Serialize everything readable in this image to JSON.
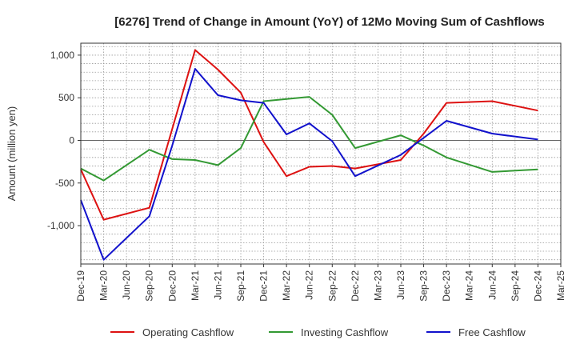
{
  "chart_data": {
    "type": "line",
    "title": "[6276]  Trend of Change in Amount (YoY) of 12Mo Moving Sum of Cashflows",
    "xlabel": "",
    "ylabel": "Amount (million yen)",
    "ylim": [
      -1450,
      1140
    ],
    "yticks": [
      1000,
      500,
      0,
      -500,
      -1000
    ],
    "ytick_labels": [
      "1,000",
      "500",
      "0",
      "-500",
      "-1,000"
    ],
    "grid": true,
    "legend_position": "bottom",
    "categories": [
      "Dec-19",
      "Mar-20",
      "Jun-20",
      "Sep-20",
      "Dec-20",
      "Mar-21",
      "Jun-21",
      "Sep-21",
      "Dec-21",
      "Mar-22",
      "Jun-22",
      "Sep-22",
      "Dec-22",
      "Mar-23",
      "Jun-23",
      "Sep-23",
      "Dec-23",
      "Mar-24",
      "Jun-24",
      "Sep-24",
      "Dec-24",
      "Mar-25"
    ],
    "series": [
      {
        "name": "Operating Cashflow",
        "color": "#dd1111",
        "values": [
          -340,
          -930,
          null,
          -790,
          null,
          1060,
          830,
          560,
          -20,
          -420,
          -310,
          -300,
          -330,
          null,
          -230,
          80,
          440,
          null,
          460,
          null,
          350,
          null
        ]
      },
      {
        "name": "Investing Cashflow",
        "color": "#339933",
        "values": [
          -330,
          -470,
          null,
          -110,
          -220,
          -230,
          -290,
          -90,
          460,
          null,
          510,
          300,
          -90,
          null,
          60,
          -60,
          -200,
          null,
          -370,
          null,
          -340,
          null
        ]
      },
      {
        "name": "Free Cashflow",
        "color": "#1111cc",
        "values": [
          -700,
          -1400,
          null,
          -890,
          -60,
          840,
          530,
          470,
          440,
          70,
          200,
          -10,
          -420,
          null,
          -170,
          30,
          230,
          null,
          80,
          null,
          10,
          null
        ]
      }
    ]
  }
}
